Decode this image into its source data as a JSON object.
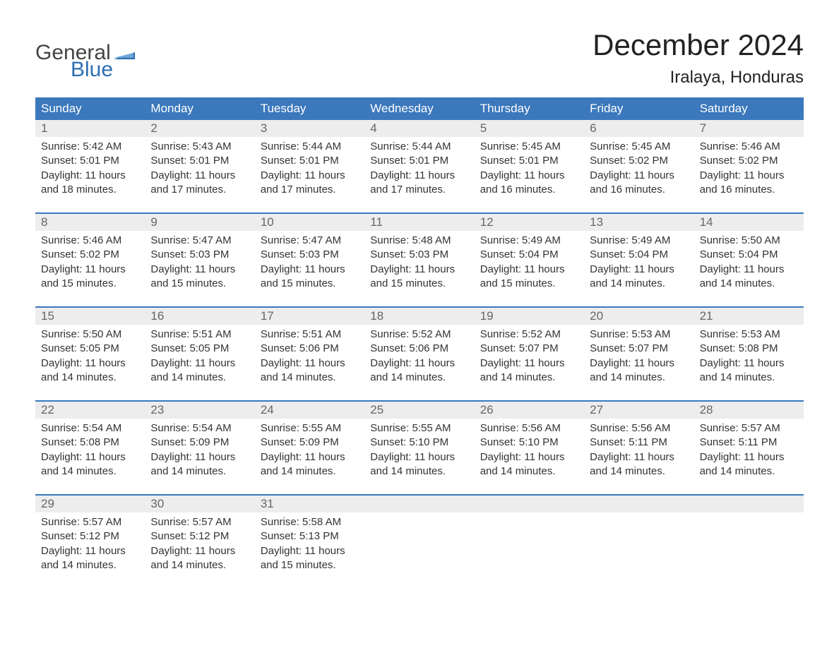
{
  "logo": {
    "word1": "General",
    "word2": "Blue",
    "word1_color": "#444444",
    "word2_color": "#2d6fb3"
  },
  "title": "December 2024",
  "location": "Iralaya, Honduras",
  "colors": {
    "header_bg": "#3b78bc",
    "header_text": "#ffffff",
    "daynum_bg": "#ededed",
    "daynum_text": "#666666",
    "body_text": "#333333",
    "week_border": "#3b78bc",
    "page_bg": "#ffffff"
  },
  "typography": {
    "title_fontsize": 42,
    "location_fontsize": 24,
    "header_fontsize": 17,
    "daynum_fontsize": 17,
    "body_fontsize": 15
  },
  "layout": {
    "columns": 7,
    "rows": 5
  },
  "day_names": [
    "Sunday",
    "Monday",
    "Tuesday",
    "Wednesday",
    "Thursday",
    "Friday",
    "Saturday"
  ],
  "weeks": [
    [
      {
        "n": "1",
        "sr": "Sunrise: 5:42 AM",
        "ss": "Sunset: 5:01 PM",
        "d1": "Daylight: 11 hours",
        "d2": "and 18 minutes."
      },
      {
        "n": "2",
        "sr": "Sunrise: 5:43 AM",
        "ss": "Sunset: 5:01 PM",
        "d1": "Daylight: 11 hours",
        "d2": "and 17 minutes."
      },
      {
        "n": "3",
        "sr": "Sunrise: 5:44 AM",
        "ss": "Sunset: 5:01 PM",
        "d1": "Daylight: 11 hours",
        "d2": "and 17 minutes."
      },
      {
        "n": "4",
        "sr": "Sunrise: 5:44 AM",
        "ss": "Sunset: 5:01 PM",
        "d1": "Daylight: 11 hours",
        "d2": "and 17 minutes."
      },
      {
        "n": "5",
        "sr": "Sunrise: 5:45 AM",
        "ss": "Sunset: 5:01 PM",
        "d1": "Daylight: 11 hours",
        "d2": "and 16 minutes."
      },
      {
        "n": "6",
        "sr": "Sunrise: 5:45 AM",
        "ss": "Sunset: 5:02 PM",
        "d1": "Daylight: 11 hours",
        "d2": "and 16 minutes."
      },
      {
        "n": "7",
        "sr": "Sunrise: 5:46 AM",
        "ss": "Sunset: 5:02 PM",
        "d1": "Daylight: 11 hours",
        "d2": "and 16 minutes."
      }
    ],
    [
      {
        "n": "8",
        "sr": "Sunrise: 5:46 AM",
        "ss": "Sunset: 5:02 PM",
        "d1": "Daylight: 11 hours",
        "d2": "and 15 minutes."
      },
      {
        "n": "9",
        "sr": "Sunrise: 5:47 AM",
        "ss": "Sunset: 5:03 PM",
        "d1": "Daylight: 11 hours",
        "d2": "and 15 minutes."
      },
      {
        "n": "10",
        "sr": "Sunrise: 5:47 AM",
        "ss": "Sunset: 5:03 PM",
        "d1": "Daylight: 11 hours",
        "d2": "and 15 minutes."
      },
      {
        "n": "11",
        "sr": "Sunrise: 5:48 AM",
        "ss": "Sunset: 5:03 PM",
        "d1": "Daylight: 11 hours",
        "d2": "and 15 minutes."
      },
      {
        "n": "12",
        "sr": "Sunrise: 5:49 AM",
        "ss": "Sunset: 5:04 PM",
        "d1": "Daylight: 11 hours",
        "d2": "and 15 minutes."
      },
      {
        "n": "13",
        "sr": "Sunrise: 5:49 AM",
        "ss": "Sunset: 5:04 PM",
        "d1": "Daylight: 11 hours",
        "d2": "and 14 minutes."
      },
      {
        "n": "14",
        "sr": "Sunrise: 5:50 AM",
        "ss": "Sunset: 5:04 PM",
        "d1": "Daylight: 11 hours",
        "d2": "and 14 minutes."
      }
    ],
    [
      {
        "n": "15",
        "sr": "Sunrise: 5:50 AM",
        "ss": "Sunset: 5:05 PM",
        "d1": "Daylight: 11 hours",
        "d2": "and 14 minutes."
      },
      {
        "n": "16",
        "sr": "Sunrise: 5:51 AM",
        "ss": "Sunset: 5:05 PM",
        "d1": "Daylight: 11 hours",
        "d2": "and 14 minutes."
      },
      {
        "n": "17",
        "sr": "Sunrise: 5:51 AM",
        "ss": "Sunset: 5:06 PM",
        "d1": "Daylight: 11 hours",
        "d2": "and 14 minutes."
      },
      {
        "n": "18",
        "sr": "Sunrise: 5:52 AM",
        "ss": "Sunset: 5:06 PM",
        "d1": "Daylight: 11 hours",
        "d2": "and 14 minutes."
      },
      {
        "n": "19",
        "sr": "Sunrise: 5:52 AM",
        "ss": "Sunset: 5:07 PM",
        "d1": "Daylight: 11 hours",
        "d2": "and 14 minutes."
      },
      {
        "n": "20",
        "sr": "Sunrise: 5:53 AM",
        "ss": "Sunset: 5:07 PM",
        "d1": "Daylight: 11 hours",
        "d2": "and 14 minutes."
      },
      {
        "n": "21",
        "sr": "Sunrise: 5:53 AM",
        "ss": "Sunset: 5:08 PM",
        "d1": "Daylight: 11 hours",
        "d2": "and 14 minutes."
      }
    ],
    [
      {
        "n": "22",
        "sr": "Sunrise: 5:54 AM",
        "ss": "Sunset: 5:08 PM",
        "d1": "Daylight: 11 hours",
        "d2": "and 14 minutes."
      },
      {
        "n": "23",
        "sr": "Sunrise: 5:54 AM",
        "ss": "Sunset: 5:09 PM",
        "d1": "Daylight: 11 hours",
        "d2": "and 14 minutes."
      },
      {
        "n": "24",
        "sr": "Sunrise: 5:55 AM",
        "ss": "Sunset: 5:09 PM",
        "d1": "Daylight: 11 hours",
        "d2": "and 14 minutes."
      },
      {
        "n": "25",
        "sr": "Sunrise: 5:55 AM",
        "ss": "Sunset: 5:10 PM",
        "d1": "Daylight: 11 hours",
        "d2": "and 14 minutes."
      },
      {
        "n": "26",
        "sr": "Sunrise: 5:56 AM",
        "ss": "Sunset: 5:10 PM",
        "d1": "Daylight: 11 hours",
        "d2": "and 14 minutes."
      },
      {
        "n": "27",
        "sr": "Sunrise: 5:56 AM",
        "ss": "Sunset: 5:11 PM",
        "d1": "Daylight: 11 hours",
        "d2": "and 14 minutes."
      },
      {
        "n": "28",
        "sr": "Sunrise: 5:57 AM",
        "ss": "Sunset: 5:11 PM",
        "d1": "Daylight: 11 hours",
        "d2": "and 14 minutes."
      }
    ],
    [
      {
        "n": "29",
        "sr": "Sunrise: 5:57 AM",
        "ss": "Sunset: 5:12 PM",
        "d1": "Daylight: 11 hours",
        "d2": "and 14 minutes."
      },
      {
        "n": "30",
        "sr": "Sunrise: 5:57 AM",
        "ss": "Sunset: 5:12 PM",
        "d1": "Daylight: 11 hours",
        "d2": "and 14 minutes."
      },
      {
        "n": "31",
        "sr": "Sunrise: 5:58 AM",
        "ss": "Sunset: 5:13 PM",
        "d1": "Daylight: 11 hours",
        "d2": "and 15 minutes."
      },
      null,
      null,
      null,
      null
    ]
  ]
}
